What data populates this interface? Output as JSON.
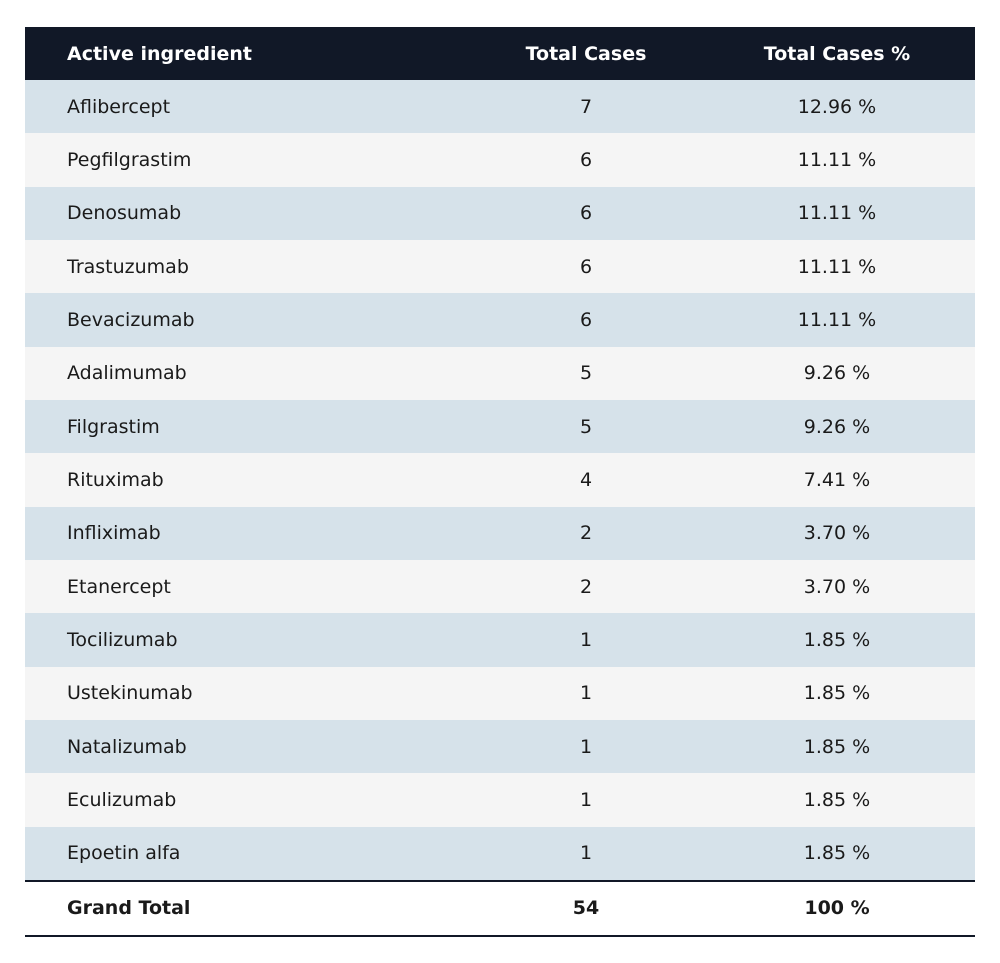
{
  "table": {
    "header": [
      "Active ingredient",
      "Total Cases",
      "Total Cases %"
    ],
    "rows": [
      [
        "Aflibercept",
        "7",
        "12.96 %"
      ],
      [
        "Pegfilgrastim",
        "6",
        "11.11 %"
      ],
      [
        "Denosumab",
        "6",
        "11.11 %"
      ],
      [
        "Trastuzumab",
        "6",
        "11.11 %"
      ],
      [
        "Bevacizumab",
        "6",
        "11.11 %"
      ],
      [
        "Adalimumab",
        "5",
        "9.26 %"
      ],
      [
        "Filgrastim",
        "5",
        "9.26 %"
      ],
      [
        "Rituximab",
        "4",
        "7.41 %"
      ],
      [
        "Infliximab",
        "2",
        "3.70 %"
      ],
      [
        "Etanercept",
        "2",
        "3.70 %"
      ],
      [
        "Tocilizumab",
        "1",
        "1.85 %"
      ],
      [
        "Ustekinumab",
        "1",
        "1.85 %"
      ],
      [
        "Natalizumab",
        "1",
        "1.85 %"
      ],
      [
        "Eculizumab",
        "1",
        "1.85 %"
      ],
      [
        "Epoetin alfa",
        "1",
        "1.85 %"
      ]
    ],
    "total": [
      "Grand Total",
      "54",
      "100 %"
    ]
  }
}
